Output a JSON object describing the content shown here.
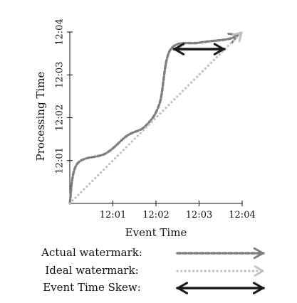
{
  "chart_data": {
    "type": "line",
    "xlabel": "Event Time",
    "ylabel": "Processing Time",
    "x_ticks": [
      "12:01",
      "12:02",
      "12:03",
      "12:04"
    ],
    "y_ticks": [
      "12:01",
      "12:02",
      "12:03",
      "12:04"
    ],
    "xlim": [
      "12:00",
      "12:04"
    ],
    "ylim": [
      "12:00",
      "12:04"
    ],
    "grid": false,
    "legend_position": "bottom",
    "series": [
      {
        "name": "Actual watermark:",
        "style": "dashed",
        "color": "#7f7f7f",
        "points": [
          {
            "x": "12:00",
            "y": "12:00"
          },
          {
            "x": "12:00:10",
            "y": "12:00:55"
          },
          {
            "x": "12:00:50",
            "y": "12:01:10"
          },
          {
            "x": "12:01:20",
            "y": "12:01:35"
          },
          {
            "x": "12:01:45",
            "y": "12:01:48"
          },
          {
            "x": "12:02:05",
            "y": "12:02:20"
          },
          {
            "x": "12:02:20",
            "y": "12:03:35"
          },
          {
            "x": "12:03:00",
            "y": "12:03:45"
          },
          {
            "x": "12:03:40",
            "y": "12:03:50"
          },
          {
            "x": "12:03:55",
            "y": "12:03:56"
          }
        ]
      },
      {
        "name": "Ideal watermark:",
        "style": "dotted",
        "color": "#bfbfbf",
        "points": [
          {
            "x": "12:00",
            "y": "12:00"
          },
          {
            "x": "12:04",
            "y": "12:04"
          }
        ]
      }
    ],
    "annotations": [
      {
        "name": "Event Time Skew:",
        "type": "double-arrow",
        "color": "#1a1a1a",
        "from": {
          "x": "12:02:25",
          "y": "12:03:36"
        },
        "to": {
          "x": "12:03:35",
          "y": "12:03:36"
        }
      }
    ]
  }
}
